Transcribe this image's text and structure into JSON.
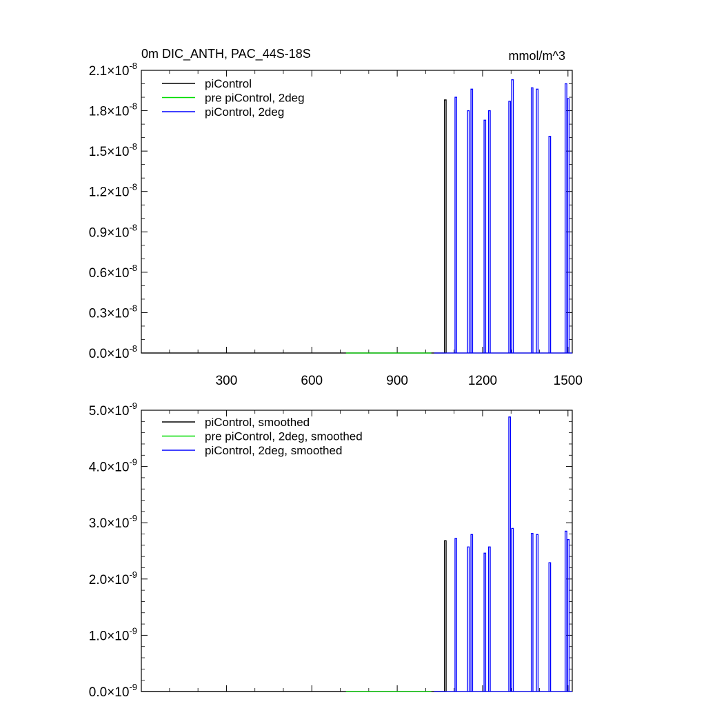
{
  "figure": {
    "background": "#ffffff",
    "line_colors": {
      "piControl": "#000000",
      "pre_piControl_2deg": "#00dd00",
      "piControl_2deg": "#0000ff"
    }
  },
  "chart_data": [
    {
      "type": "line",
      "title": "0m DIC_ANTH, PAC_44S-18S",
      "units": "mmol/m^3",
      "xlim": [
        1,
        1515
      ],
      "ylim": [
        0.0,
        2.1e-08
      ],
      "x_ticks": [
        300,
        600,
        900,
        1200,
        1500
      ],
      "x_tick_labels": [
        "300",
        "600",
        "900",
        "1200",
        "1500"
      ],
      "y_ticks": [
        0.0,
        3e-09,
        6e-09,
        9e-09,
        1.2e-08,
        1.5e-08,
        1.8e-08,
        2.1e-08
      ],
      "y_tick_labels": [
        {
          "mantissa": "0.0",
          "exponent": "-8"
        },
        {
          "mantissa": "0.3",
          "exponent": "-8"
        },
        {
          "mantissa": "0.6",
          "exponent": "-8"
        },
        {
          "mantissa": "0.9",
          "exponent": "-8"
        },
        {
          "mantissa": "1.2",
          "exponent": "-8"
        },
        {
          "mantissa": "1.5",
          "exponent": "-8"
        },
        {
          "mantissa": "1.8",
          "exponent": "-8"
        },
        {
          "mantissa": "2.1",
          "exponent": "-8"
        }
      ],
      "legend_position": "top-left",
      "series": [
        {
          "name": "piControl",
          "color": "#000000",
          "baseline_x": [
            1,
            1070
          ],
          "spikes": [
            {
              "x": 1069,
              "y": 1.88e-08
            }
          ]
        },
        {
          "name": "pre piControl, 2deg",
          "color": "#00dd00",
          "baseline_x": [
            720,
            1020
          ],
          "spikes": []
        },
        {
          "name": "piControl, 2deg",
          "color": "#0000ff",
          "baseline_x": [
            1030,
            1515
          ],
          "spikes": [
            {
              "x": 1106,
              "y": 1.9e-08
            },
            {
              "x": 1150,
              "y": 1.8e-08
            },
            {
              "x": 1162,
              "y": 1.96e-08
            },
            {
              "x": 1208,
              "y": 1.73e-08
            },
            {
              "x": 1224,
              "y": 1.8e-08
            },
            {
              "x": 1295,
              "y": 1.87e-08
            },
            {
              "x": 1305,
              "y": 2.03e-08
            },
            {
              "x": 1374,
              "y": 1.97e-08
            },
            {
              "x": 1392,
              "y": 1.96e-08
            },
            {
              "x": 1436,
              "y": 1.61e-08
            },
            {
              "x": 1493,
              "y": 2e-08
            },
            {
              "x": 1501,
              "y": 1.89e-08
            }
          ]
        }
      ]
    },
    {
      "type": "line",
      "xlim": [
        1,
        1515
      ],
      "ylim": [
        0.0,
        5e-09
      ],
      "x_ticks": [
        300,
        600,
        900,
        1200,
        1500
      ],
      "x_tick_labels": [],
      "y_ticks": [
        0.0,
        1e-09,
        2e-09,
        3e-09,
        4e-09,
        5e-09
      ],
      "y_tick_labels": [
        {
          "mantissa": "0.0",
          "exponent": "-9"
        },
        {
          "mantissa": "1.0",
          "exponent": "-9"
        },
        {
          "mantissa": "2.0",
          "exponent": "-9"
        },
        {
          "mantissa": "3.0",
          "exponent": "-9"
        },
        {
          "mantissa": "4.0",
          "exponent": "-9"
        },
        {
          "mantissa": "5.0",
          "exponent": "-9"
        }
      ],
      "legend_position": "top-left",
      "series": [
        {
          "name": "piControl, smoothed",
          "color": "#000000",
          "baseline_x": [
            1,
            1070
          ],
          "spikes": [
            {
              "x": 1069,
              "y": 2.68e-09
            }
          ]
        },
        {
          "name": "pre piControl, 2deg, smoothed",
          "color": "#00dd00",
          "baseline_x": [
            720,
            1020
          ],
          "spikes": []
        },
        {
          "name": "piControl, 2deg, smoothed",
          "color": "#0000ff",
          "baseline_x": [
            1030,
            1515
          ],
          "spikes": [
            {
              "x": 1106,
              "y": 2.72e-09
            },
            {
              "x": 1150,
              "y": 2.57e-09
            },
            {
              "x": 1162,
              "y": 2.79e-09
            },
            {
              "x": 1208,
              "y": 2.46e-09
            },
            {
              "x": 1224,
              "y": 2.57e-09
            },
            {
              "x": 1295,
              "y": 4.88e-09
            },
            {
              "x": 1305,
              "y": 2.9e-09
            },
            {
              "x": 1374,
              "y": 2.81e-09
            },
            {
              "x": 1392,
              "y": 2.79e-09
            },
            {
              "x": 1436,
              "y": 2.29e-09
            },
            {
              "x": 1493,
              "y": 2.85e-09
            },
            {
              "x": 1501,
              "y": 2.7e-09
            }
          ]
        }
      ]
    }
  ]
}
